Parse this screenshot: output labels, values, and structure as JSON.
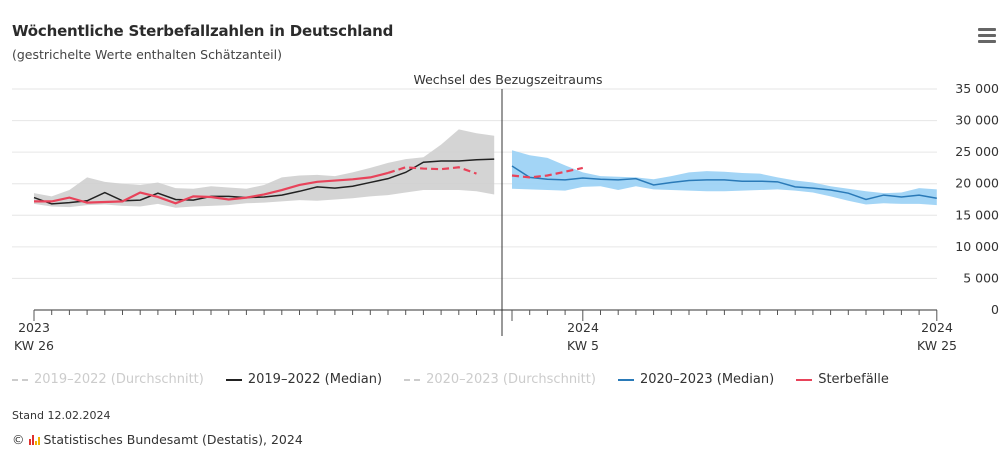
{
  "header": {
    "title": "Wöchentliche Sterbefallzahlen in Deutschland",
    "subtitle": "(gestrichelte Werte enthalten Schätzanteil)"
  },
  "menu": {
    "icon": "hamburger-menu-icon"
  },
  "chart_data": {
    "type": "line",
    "title": "Wöchentliche Sterbefallzahlen in Deutschland",
    "subtitle": "(gestrichelte Werte enthalten Schätzanteil)",
    "annotation": "Wechsel des Bezugszeitraums",
    "xlabel": "",
    "ylabel": "",
    "ylim": [
      0,
      35000
    ],
    "y_ticks": [
      0,
      5000,
      10000,
      15000,
      20000,
      25000,
      30000,
      35000
    ],
    "y_tick_labels": [
      "0",
      "5 000",
      "10 000",
      "15 000",
      "20 000",
      "25 000",
      "30 000",
      "35 000"
    ],
    "grid": true,
    "x_tick_labels": [
      {
        "year": "2023",
        "week": "KW 26"
      },
      {
        "year": "2024",
        "week": "KW 5"
      },
      {
        "year": "2024",
        "week": "KW 25"
      }
    ],
    "legend_position": "bottom",
    "legend": [
      {
        "label": "2019–2022 (Durchschnitt)",
        "style": "dashed",
        "color": "#cccccc",
        "visible": false
      },
      {
        "label": "2019–2022 (Median)",
        "style": "solid",
        "color": "#222222",
        "visible": true
      },
      {
        "label": "2020–2023 (Durchschnitt)",
        "style": "dashed",
        "color": "#cccccc",
        "visible": false
      },
      {
        "label": "2020–2023 (Median)",
        "style": "solid",
        "color": "#2a7ab8",
        "visible": true
      },
      {
        "label": "Sterbefälle",
        "style": "solid",
        "color": "#e8435a",
        "visible": true
      }
    ],
    "segments": [
      {
        "period": "2023",
        "weeks": [
          26,
          27,
          28,
          29,
          30,
          31,
          32,
          33,
          34,
          35,
          36,
          37,
          38,
          39,
          40,
          41,
          42,
          43,
          44,
          45,
          46,
          47,
          48,
          49,
          50,
          51,
          52
        ],
        "median_name": "2019–2022 (Median)",
        "median": [
          17800,
          16800,
          17000,
          17300,
          18600,
          17300,
          17400,
          18500,
          17500,
          17400,
          18000,
          18000,
          17800,
          17900,
          18200,
          18800,
          19500,
          19300,
          19600,
          20200,
          20800,
          21800,
          23400,
          23600,
          23600,
          23800,
          23900
        ],
        "range_min": [
          16800,
          16400,
          16300,
          16600,
          16700,
          16500,
          16400,
          16800,
          16200,
          16400,
          16500,
          16600,
          16900,
          17000,
          17200,
          17400,
          17300,
          17500,
          17700,
          18000,
          18200,
          18600,
          19000,
          19000,
          19000,
          18800,
          18300
        ],
        "range_max": [
          18500,
          18000,
          19000,
          21000,
          20300,
          20000,
          19800,
          20200,
          19300,
          19200,
          19600,
          19400,
          19200,
          19800,
          21000,
          21300,
          21400,
          21200,
          21800,
          22500,
          23300,
          23900,
          24200,
          26200,
          28600,
          28000,
          27600
        ],
        "range_color": "#cfcfcf"
      },
      {
        "period": "2024",
        "weeks": [
          1,
          2,
          3,
          4,
          5,
          6,
          7,
          8,
          9,
          10,
          11,
          12,
          13,
          14,
          15,
          16,
          17,
          18,
          19,
          20,
          21,
          22,
          23,
          24,
          25
        ],
        "median_name": "2020–2023 (Median)",
        "median": [
          22800,
          21000,
          20700,
          20600,
          20900,
          20700,
          20600,
          20800,
          19800,
          20200,
          20500,
          20600,
          20600,
          20400,
          20400,
          20300,
          19500,
          19300,
          19000,
          18500,
          17500,
          18200,
          17900,
          18200,
          17700
        ],
        "range_min": [
          19200,
          19100,
          19000,
          18900,
          19500,
          19600,
          19000,
          19600,
          19100,
          19000,
          18900,
          18800,
          18800,
          18900,
          19000,
          19100,
          18900,
          18600,
          18000,
          17300,
          16700,
          16900,
          16800,
          16800,
          16600
        ],
        "range_max": [
          25300,
          24500,
          24100,
          22900,
          21800,
          21200,
          21100,
          21000,
          20700,
          21200,
          21800,
          22000,
          21900,
          21700,
          21600,
          21000,
          20500,
          20200,
          19600,
          19200,
          18800,
          18500,
          18600,
          19300,
          19100
        ],
        "range_color": "#99d0f5"
      }
    ],
    "sterbefaelle": {
      "name": "Sterbefälle",
      "color": "#e8435a",
      "points": [
        {
          "period": "2023",
          "week": 26,
          "value": 17200,
          "estimated": false
        },
        {
          "period": "2023",
          "week": 27,
          "value": 17200,
          "estimated": false
        },
        {
          "period": "2023",
          "week": 28,
          "value": 17800,
          "estimated": false
        },
        {
          "period": "2023",
          "week": 29,
          "value": 17000,
          "estimated": false
        },
        {
          "period": "2023",
          "week": 30,
          "value": 17100,
          "estimated": false
        },
        {
          "period": "2023",
          "week": 31,
          "value": 17200,
          "estimated": false
        },
        {
          "period": "2023",
          "week": 32,
          "value": 18600,
          "estimated": false
        },
        {
          "period": "2023",
          "week": 33,
          "value": 17900,
          "estimated": false
        },
        {
          "period": "2023",
          "week": 34,
          "value": 16900,
          "estimated": false
        },
        {
          "period": "2023",
          "week": 35,
          "value": 18000,
          "estimated": false
        },
        {
          "period": "2023",
          "week": 36,
          "value": 17900,
          "estimated": false
        },
        {
          "period": "2023",
          "week": 37,
          "value": 17500,
          "estimated": false
        },
        {
          "period": "2023",
          "week": 38,
          "value": 17800,
          "estimated": false
        },
        {
          "period": "2023",
          "week": 39,
          "value": 18300,
          "estimated": false
        },
        {
          "period": "2023",
          "week": 40,
          "value": 19000,
          "estimated": false
        },
        {
          "period": "2023",
          "week": 41,
          "value": 19800,
          "estimated": false
        },
        {
          "period": "2023",
          "week": 42,
          "value": 20300,
          "estimated": false
        },
        {
          "period": "2023",
          "week": 43,
          "value": 20500,
          "estimated": false
        },
        {
          "period": "2023",
          "week": 44,
          "value": 20700,
          "estimated": false
        },
        {
          "period": "2023",
          "week": 45,
          "value": 21000,
          "estimated": false
        },
        {
          "period": "2023",
          "week": 46,
          "value": 21700,
          "estimated": false
        },
        {
          "period": "2023",
          "week": 47,
          "value": 22600,
          "estimated": true
        },
        {
          "period": "2023",
          "week": 48,
          "value": 22400,
          "estimated": true
        },
        {
          "period": "2023",
          "week": 49,
          "value": 22300,
          "estimated": true
        },
        {
          "period": "2023",
          "week": 50,
          "value": 22600,
          "estimated": true
        },
        {
          "period": "2023",
          "week": 51,
          "value": 21600,
          "estimated": true
        },
        {
          "period": "2024",
          "week": 1,
          "value": 21300,
          "estimated": true
        },
        {
          "period": "2024",
          "week": 2,
          "value": 21000,
          "estimated": true
        },
        {
          "period": "2024",
          "week": 3,
          "value": 21300,
          "estimated": true
        },
        {
          "period": "2024",
          "week": 4,
          "value": 21900,
          "estimated": true
        },
        {
          "period": "2024",
          "week": 5,
          "value": 22500,
          "estimated": true
        }
      ]
    }
  },
  "footer": {
    "stand": "Stand 12.02.2024",
    "copyright_symbol": "©",
    "logo_icon": "destatis-logo-icon",
    "credit": "Statistisches Bundesamt (Destatis), 2024"
  }
}
